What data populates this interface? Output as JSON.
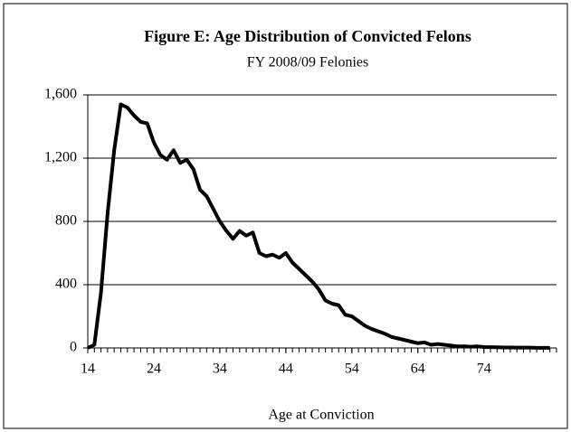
{
  "chart_data": {
    "type": "line",
    "title": "Figure E:  Age Distribution of Convicted Felons",
    "subtitle": "FY 2008/09 Felonies",
    "x_label": "Age at Conviction",
    "x": [
      14,
      15,
      16,
      17,
      18,
      19,
      20,
      21,
      22,
      23,
      24,
      25,
      26,
      27,
      28,
      29,
      30,
      31,
      32,
      33,
      34,
      35,
      36,
      37,
      38,
      39,
      40,
      41,
      42,
      43,
      44,
      45,
      46,
      47,
      48,
      49,
      50,
      51,
      52,
      53,
      54,
      55,
      56,
      57,
      58,
      59,
      60,
      61,
      62,
      63,
      64,
      65,
      66,
      67,
      68,
      69,
      70,
      71,
      72,
      73,
      74,
      75,
      76,
      77,
      78,
      79,
      80,
      81,
      82,
      83,
      84
    ],
    "series": [
      {
        "color": "#000000",
        "values": [
          0,
          20,
          350,
          850,
          1250,
          1540,
          1520,
          1470,
          1430,
          1420,
          1300,
          1220,
          1190,
          1250,
          1170,
          1190,
          1130,
          1000,
          960,
          880,
          800,
          740,
          690,
          740,
          710,
          730,
          600,
          580,
          590,
          570,
          600,
          540,
          500,
          460,
          420,
          370,
          300,
          280,
          270,
          210,
          200,
          170,
          140,
          120,
          105,
          90,
          70,
          60,
          50,
          40,
          30,
          35,
          20,
          25,
          20,
          15,
          10,
          10,
          8,
          10,
          6,
          5,
          4,
          3,
          3,
          2,
          2,
          2,
          1,
          1,
          1
        ]
      }
    ],
    "xlim": [
      14,
      85
    ],
    "xticks": [
      14,
      24,
      34,
      44,
      54,
      64,
      74
    ],
    "ylim": [
      0,
      1600
    ],
    "yticks": [
      0,
      {
        "value": 400,
        "label": "400"
      },
      {
        "value": 800,
        "label": "800"
      },
      {
        "value": 1200,
        "label": "1,200"
      },
      {
        "value": 1600,
        "label": "1,600"
      }
    ],
    "grid": true
  }
}
